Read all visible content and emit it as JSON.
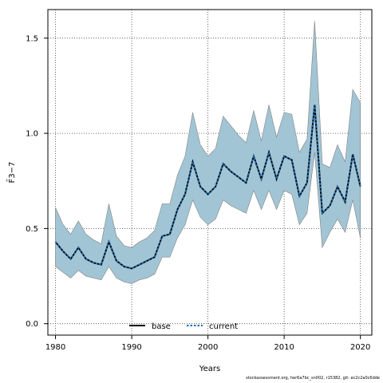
{
  "chart_data": {
    "type": "line",
    "xlabel": "Years",
    "ylabel": "F̄3−7",
    "xlim": [
      1979,
      2021.5
    ],
    "ylim": [
      -0.06,
      1.65
    ],
    "xticks": [
      1980,
      1990,
      2000,
      2010,
      2020
    ],
    "yticks": [
      0.0,
      0.5,
      1.0,
      1.5
    ],
    "ytick_labels": [
      "0.0",
      "0.5",
      "1.0",
      "1.5"
    ],
    "grid": true,
    "legend_position": "bottom-center",
    "x": [
      1980,
      1981,
      1982,
      1983,
      1984,
      1985,
      1986,
      1987,
      1988,
      1989,
      1990,
      1991,
      1992,
      1993,
      1994,
      1995,
      1996,
      1997,
      1998,
      1999,
      2000,
      2001,
      2002,
      2003,
      2004,
      2005,
      2006,
      2007,
      2008,
      2009,
      2010,
      2011,
      2012,
      2013,
      2014,
      2015,
      2016,
      2017,
      2018,
      2019,
      2020
    ],
    "band": {
      "color": "#a2c5d5",
      "lower": [
        0.3,
        0.27,
        0.24,
        0.28,
        0.25,
        0.24,
        0.23,
        0.3,
        0.24,
        0.22,
        0.21,
        0.23,
        0.24,
        0.26,
        0.35,
        0.35,
        0.45,
        0.52,
        0.65,
        0.56,
        0.52,
        0.55,
        0.65,
        0.62,
        0.6,
        0.58,
        0.7,
        0.6,
        0.7,
        0.6,
        0.7,
        0.68,
        0.52,
        0.58,
        0.9,
        0.4,
        0.48,
        0.55,
        0.48,
        0.65,
        0.45
      ],
      "upper": [
        0.61,
        0.52,
        0.47,
        0.54,
        0.47,
        0.44,
        0.42,
        0.63,
        0.46,
        0.41,
        0.4,
        0.43,
        0.45,
        0.49,
        0.63,
        0.63,
        0.78,
        0.88,
        1.11,
        0.94,
        0.88,
        0.92,
        1.09,
        1.04,
        0.99,
        0.95,
        1.12,
        0.96,
        1.15,
        0.98,
        1.11,
        1.1,
        0.9,
        0.97,
        1.59,
        0.84,
        0.82,
        0.94,
        0.85,
        1.23,
        1.16
      ]
    },
    "series": [
      {
        "name": "base",
        "color": "#000000",
        "style": "solid",
        "values": [
          0.43,
          0.38,
          0.34,
          0.4,
          0.34,
          0.32,
          0.31,
          0.43,
          0.33,
          0.3,
          0.29,
          0.31,
          0.33,
          0.35,
          0.46,
          0.47,
          0.6,
          0.68,
          0.85,
          0.72,
          0.68,
          0.72,
          0.84,
          0.8,
          0.77,
          0.74,
          0.88,
          0.76,
          0.9,
          0.76,
          0.88,
          0.86,
          0.67,
          0.74,
          1.15,
          0.58,
          0.62,
          0.72,
          0.64,
          0.89,
          0.72
        ]
      },
      {
        "name": "current",
        "color": "#1f6fb4",
        "style": "dashed",
        "values": [
          0.43,
          0.38,
          0.34,
          0.4,
          0.34,
          0.32,
          0.31,
          0.43,
          0.33,
          0.3,
          0.29,
          0.31,
          0.33,
          0.35,
          0.46,
          0.47,
          0.6,
          0.68,
          0.85,
          0.72,
          0.68,
          0.72,
          0.84,
          0.8,
          0.77,
          0.74,
          0.88,
          0.76,
          0.9,
          0.76,
          0.88,
          0.86,
          0.67,
          0.74,
          1.15,
          0.58,
          0.62,
          0.72,
          0.64,
          0.89,
          0.72
        ]
      }
    ]
  },
  "footer_text": "stockassessment.org, her6a7bc_sn002, r15382, git: ec2c2a0c6dde"
}
